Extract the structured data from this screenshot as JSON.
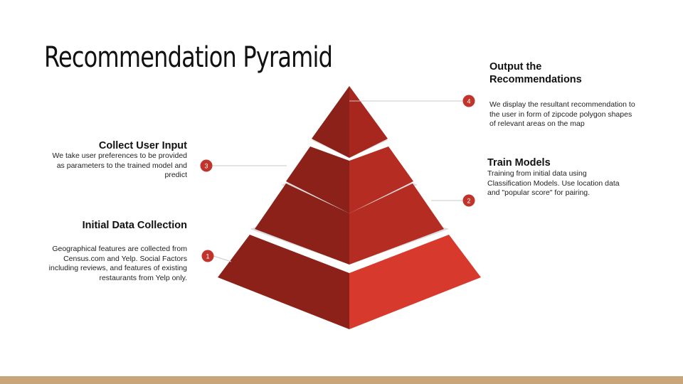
{
  "slide": {
    "title": "Recommendation Pyramid"
  },
  "steps": [
    {
      "number": "1",
      "title": "Initial Data Collection",
      "description": "Geographical features are collected from Census.com and Yelp. Social Factors including reviews,  and features of existing restaurants from Yelp only."
    },
    {
      "number": "2",
      "title": "Train Models",
      "description": "Training from initial data using Classification Models. Use location data and \"popular score\" for pairing."
    },
    {
      "number": "3",
      "title": "Collect User Input",
      "description": "We take user preferences to be provided as parameters to the trained model and predict"
    },
    {
      "number": "4",
      "title": "Output the Recommendations",
      "description": "We display the resultant recommendation to the user in form of zipcode polygon shapes  of relevant areas on the map"
    }
  ],
  "colors": {
    "tier_left": "#8b2119",
    "tier_right_top": "#a7261d",
    "tier_right_mid": "#b42c22",
    "tier_right_bottom": "#d8392d",
    "gap_band": "#dcdcdc",
    "badge": "#c0342b",
    "connector_line": "#c8c8c8",
    "bottom_bar": "#c9a57a"
  }
}
